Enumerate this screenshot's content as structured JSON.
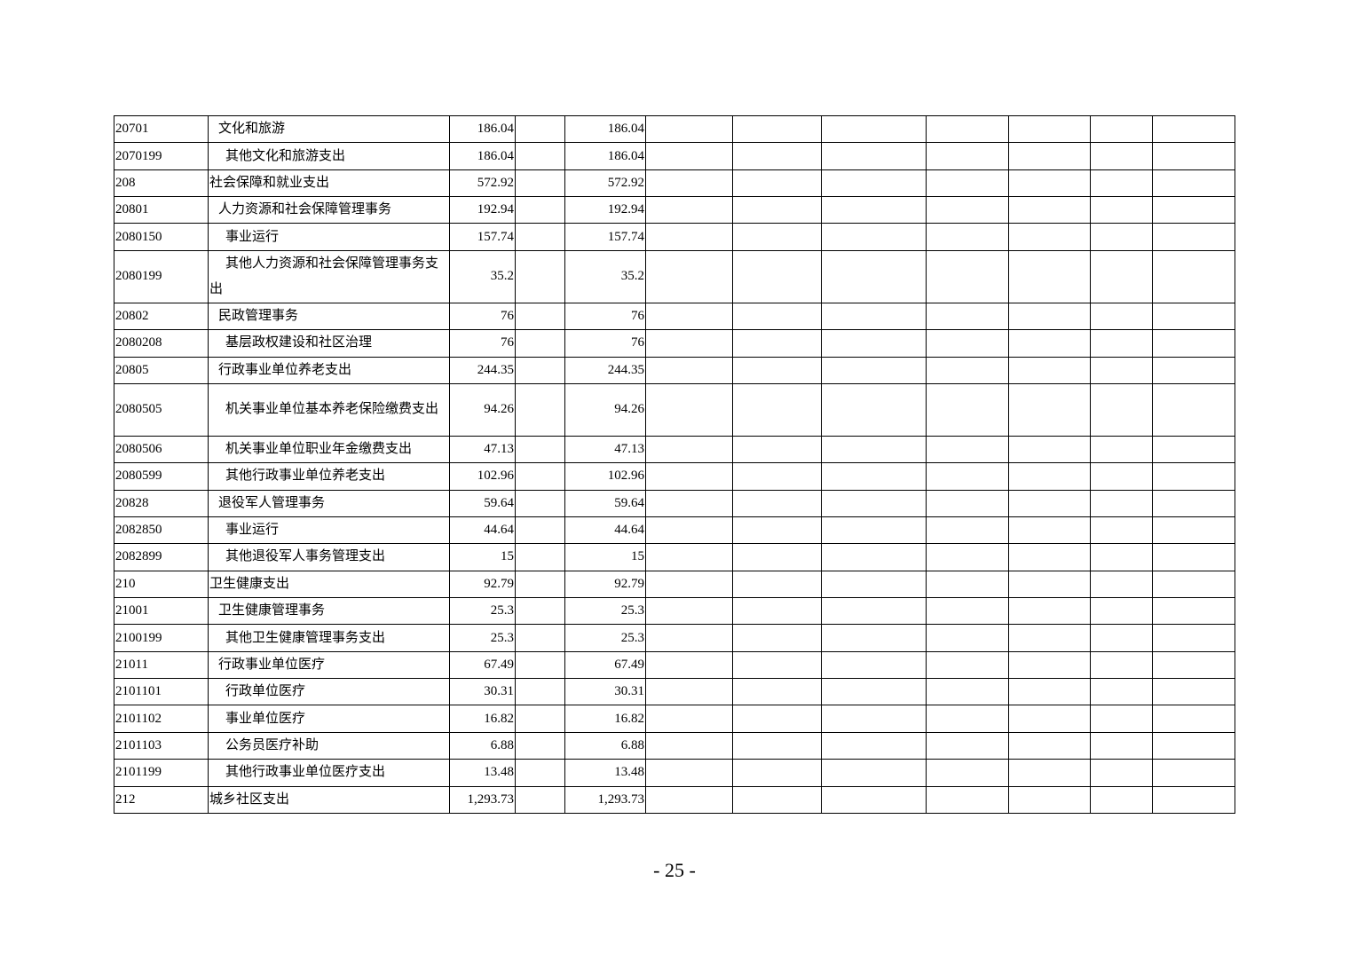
{
  "table": {
    "rows": [
      {
        "code": "20701",
        "name": "文化和旅游",
        "level": 2,
        "v1": "186.04",
        "v2": "186.04"
      },
      {
        "code": "2070199",
        "name": "其他文化和旅游支出",
        "level": 3,
        "v1": "186.04",
        "v2": "186.04"
      },
      {
        "code": "208",
        "name": "社会保障和就业支出",
        "level": 1,
        "v1": "572.92",
        "v2": "572.92"
      },
      {
        "code": "20801",
        "name": "人力资源和社会保障管理事务",
        "level": 2,
        "v1": "192.94",
        "v2": "192.94"
      },
      {
        "code": "2080150",
        "name": "事业运行",
        "level": 3,
        "v1": "157.74",
        "v2": "157.74"
      },
      {
        "code": "2080199",
        "name": "其他人力资源和社会保障管理事务支出",
        "level": 3,
        "v1": "35.2",
        "v2": "35.2"
      },
      {
        "code": "20802",
        "name": "民政管理事务",
        "level": 2,
        "v1": "76",
        "v2": "76"
      },
      {
        "code": "2080208",
        "name": "基层政权建设和社区治理",
        "level": 3,
        "v1": "76",
        "v2": "76"
      },
      {
        "code": "20805",
        "name": "行政事业单位养老支出",
        "level": 2,
        "v1": "244.35",
        "v2": "244.35"
      },
      {
        "code": "2080505",
        "name": "机关事业单位基本养老保险缴费支出",
        "level": 3,
        "v1": "94.26",
        "v2": "94.26"
      },
      {
        "code": "2080506",
        "name": "机关事业单位职业年金缴费支出",
        "level": 3,
        "v1": "47.13",
        "v2": "47.13"
      },
      {
        "code": "2080599",
        "name": "其他行政事业单位养老支出",
        "level": 3,
        "v1": "102.96",
        "v2": "102.96"
      },
      {
        "code": "20828",
        "name": "退役军人管理事务",
        "level": 2,
        "v1": "59.64",
        "v2": "59.64"
      },
      {
        "code": "2082850",
        "name": "事业运行",
        "level": 3,
        "v1": "44.64",
        "v2": "44.64"
      },
      {
        "code": "2082899",
        "name": "其他退役军人事务管理支出",
        "level": 3,
        "v1": "15",
        "v2": "15"
      },
      {
        "code": "210",
        "name": "卫生健康支出",
        "level": 1,
        "v1": "92.79",
        "v2": "92.79"
      },
      {
        "code": "21001",
        "name": "卫生健康管理事务",
        "level": 2,
        "v1": "25.3",
        "v2": "25.3"
      },
      {
        "code": "2100199",
        "name": "其他卫生健康管理事务支出",
        "level": 3,
        "v1": "25.3",
        "v2": "25.3"
      },
      {
        "code": "21011",
        "name": "行政事业单位医疗",
        "level": 2,
        "v1": "67.49",
        "v2": "67.49"
      },
      {
        "code": "2101101",
        "name": "行政单位医疗",
        "level": 3,
        "v1": "30.31",
        "v2": "30.31"
      },
      {
        "code": "2101102",
        "name": "事业单位医疗",
        "level": 3,
        "v1": "16.82",
        "v2": "16.82"
      },
      {
        "code": "2101103",
        "name": "公务员医疗补助",
        "level": 3,
        "v1": "6.88",
        "v2": "6.88"
      },
      {
        "code": "2101199",
        "name": "其他行政事业单位医疗支出",
        "level": 3,
        "v1": "13.48",
        "v2": "13.48"
      },
      {
        "code": "212",
        "name": "城乡社区支出",
        "level": 1,
        "v1": "1,293.73",
        "v2": "1,293.73"
      }
    ]
  },
  "footer": {
    "page_number": "- 25 -"
  }
}
